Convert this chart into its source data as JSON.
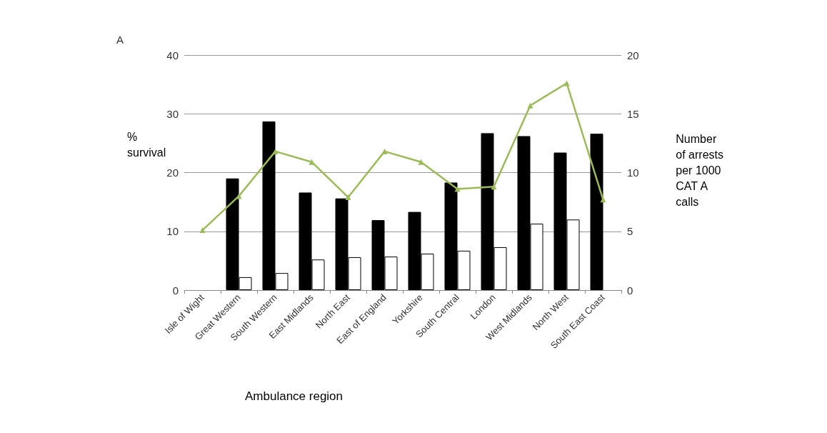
{
  "chart_data": {
    "type": "bar",
    "title": "A",
    "xlabel": "Ambulance region",
    "ylabel": "%\nsurvival",
    "y2label": "Number\nof arrests\nper 1000\nCAT A\ncalls",
    "categories": [
      "Isle of Wight",
      "Great Western",
      "South Western",
      "East Midlands",
      "North East",
      "East of England",
      "Yorkshire",
      "South Central",
      "London",
      "West Midlands",
      "North West",
      "South East Coast"
    ],
    "series": [
      {
        "color": "#000000",
        "values": [
          null,
          19.0,
          28.7,
          16.6,
          15.6,
          11.9,
          13.3,
          18.3,
          26.7,
          26.2,
          23.4,
          26.6
        ]
      },
      {
        "color": "#ffffff",
        "values": [
          null,
          2.2,
          2.9,
          5.2,
          5.6,
          5.7,
          6.2,
          6.7,
          7.3,
          11.3,
          12.0,
          null
        ]
      },
      {
        "type": "line",
        "axis": "y2",
        "color": "#9bbb59",
        "marker": "triangle",
        "values": [
          5.1,
          8.0,
          11.8,
          10.9,
          7.9,
          11.8,
          10.9,
          8.6,
          8.8,
          15.7,
          17.6,
          7.7
        ]
      }
    ],
    "ylim": [
      0,
      40
    ],
    "yticks": [
      0,
      10,
      20,
      30,
      40
    ],
    "y2lim": [
      0,
      20
    ],
    "y2ticks": [
      0,
      5,
      10,
      15,
      20
    ],
    "grid": "y"
  }
}
